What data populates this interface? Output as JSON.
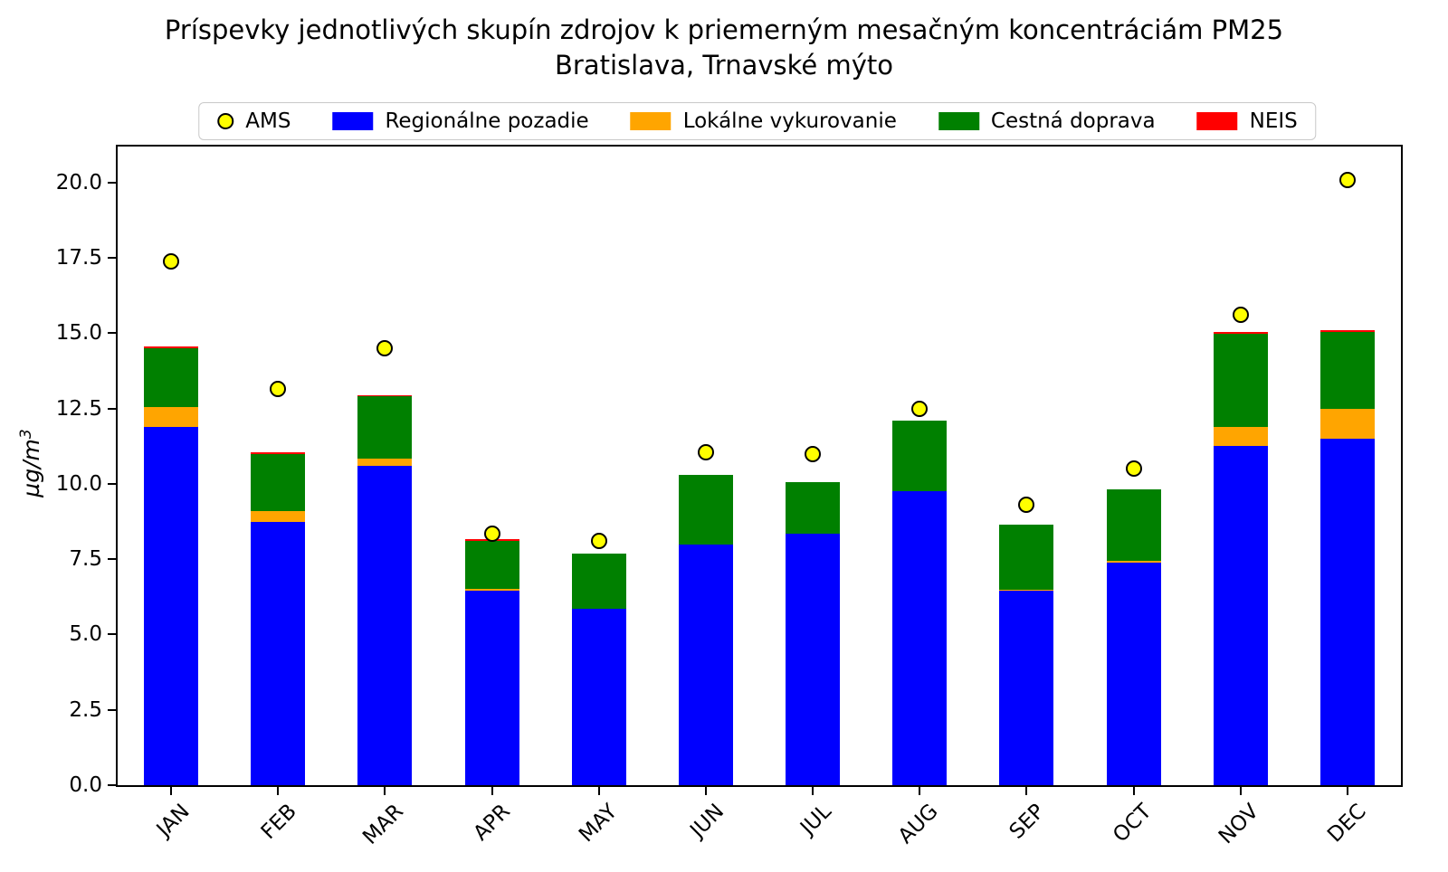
{
  "chart_data": {
    "type": "bar",
    "stacked": true,
    "title": "Príspevky jednotlivých skupín zdrojov k priemerným mesačným koncentráciám PM25",
    "subtitle": "Bratislava, Trnavské mýto",
    "ylabel": "µg/m³",
    "ylabel_base": "µg/m",
    "ylabel_exponent": "3",
    "categories": [
      "JAN",
      "FEB",
      "MAR",
      "APR",
      "MAY",
      "JUN",
      "JUL",
      "AUG",
      "SEP",
      "OCT",
      "NOV",
      "DEC"
    ],
    "series": [
      {
        "name": "Regionálne pozadie",
        "color": "#0000ff",
        "values": [
          11.9,
          8.75,
          10.6,
          6.45,
          5.85,
          8.0,
          8.35,
          9.75,
          6.45,
          7.4,
          11.25,
          11.5
        ]
      },
      {
        "name": "Lokálne vykurovanie",
        "color": "#ffa500",
        "values": [
          0.65,
          0.35,
          0.25,
          0.07,
          0,
          0,
          0,
          0,
          0.05,
          0.06,
          0.63,
          1.0
        ]
      },
      {
        "name": "Cestná doprava",
        "color": "#008000",
        "values": [
          1.95,
          1.9,
          2.05,
          1.6,
          1.85,
          2.3,
          1.7,
          2.35,
          2.15,
          2.35,
          3.1,
          2.55
        ]
      },
      {
        "name": "NEIS",
        "color": "#ff0000",
        "values": [
          0.05,
          0.05,
          0.03,
          0.04,
          0,
          0,
          0,
          0,
          0,
          0,
          0.05,
          0.04
        ]
      }
    ],
    "markers": {
      "name": "AMS",
      "color": "#ffff00",
      "edge_color": "#000000",
      "shape": "circle",
      "values": [
        17.4,
        13.15,
        14.5,
        8.35,
        8.1,
        11.05,
        11.0,
        12.5,
        9.3,
        10.5,
        15.6,
        20.1
      ]
    },
    "totals": [
      14.55,
      11.05,
      12.93,
      8.16,
      7.7,
      10.3,
      10.05,
      12.1,
      8.65,
      9.81,
      15.03,
      15.09
    ],
    "legend": [
      {
        "label": "AMS",
        "swatch": "circle",
        "color": "#ffff00"
      },
      {
        "label": "Regionálne pozadie",
        "swatch": "rect",
        "color": "#0000ff"
      },
      {
        "label": "Lokálne vykurovanie",
        "swatch": "rect",
        "color": "#ffa500"
      },
      {
        "label": "Cestná doprava",
        "swatch": "rect",
        "color": "#008000"
      },
      {
        "label": "NEIS",
        "swatch": "rect",
        "color": "#ff0000"
      }
    ],
    "legend_position": "top",
    "grid": false,
    "ylim": [
      0,
      21.2
    ],
    "yticks": [
      0,
      2.5,
      5,
      7.5,
      10,
      12.5,
      15,
      17.5,
      20
    ],
    "ytick_labels": [
      "0.0",
      "2.5",
      "5.0",
      "7.5",
      "10.0",
      "12.5",
      "15.0",
      "17.5",
      "20.0"
    ],
    "axis_color": "#000000"
  }
}
